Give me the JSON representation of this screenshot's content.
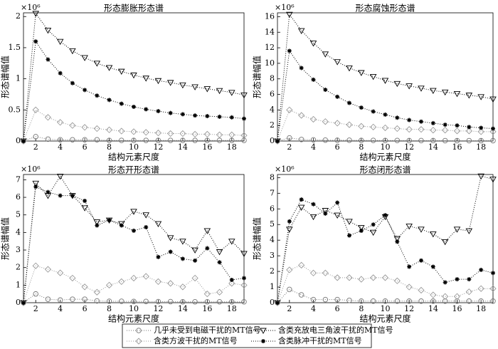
{
  "chart_data": [
    {
      "type": "line",
      "title": "形态膨胀形态谱",
      "x_label": "结构元素尺度",
      "y_label": "形态谱幅值",
      "y_multiplier": "×10⁶",
      "x": [
        1,
        2,
        3,
        4,
        5,
        6,
        7,
        8,
        9,
        10,
        11,
        12,
        13,
        14,
        15,
        16,
        17,
        18,
        19
      ],
      "xlim": [
        1,
        19
      ],
      "xticks": [
        2,
        4,
        6,
        8,
        10,
        12,
        14,
        16,
        18
      ],
      "ylim": [
        0,
        2.06
      ],
      "yticks": [
        0,
        0.5,
        1,
        1.5,
        2
      ],
      "series": [
        {
          "name": "几乎未受到电磁干扰的MT信号",
          "color": "#777777",
          "marker": "circle",
          "values": [
            0,
            0.07,
            0.03,
            0.02,
            0.02,
            0.02,
            0.02,
            0.01,
            0.01,
            0.01,
            0.01,
            0.01,
            0.01,
            0.01,
            0.01,
            0.01,
            0.01,
            0.01,
            0.01
          ]
        },
        {
          "name": "含类充放电三角波干扰的MT信号",
          "color": "#000000",
          "marker": "triangle",
          "values": [
            0,
            2.05,
            1.78,
            1.6,
            1.45,
            1.34,
            1.25,
            1.18,
            1.12,
            1.06,
            1.01,
            0.97,
            0.94,
            0.9,
            0.87,
            0.84,
            0.81,
            0.78,
            0.74
          ]
        },
        {
          "name": "含类方波干扰的MT信号",
          "color": "#999999",
          "marker": "diamond",
          "values": [
            0,
            0.5,
            0.38,
            0.3,
            0.25,
            0.22,
            0.2,
            0.18,
            0.16,
            0.15,
            0.14,
            0.13,
            0.12,
            0.12,
            0.11,
            0.11,
            0.1,
            0.1,
            0.09
          ]
        },
        {
          "name": "含类脉冲干扰的MT信号",
          "color": "#000000",
          "marker": "star",
          "values": [
            0,
            1.6,
            1.31,
            1.09,
            0.93,
            0.82,
            0.73,
            0.66,
            0.6,
            0.55,
            0.51,
            0.48,
            0.45,
            0.43,
            0.41,
            0.4,
            0.39,
            0.38,
            0.36
          ]
        }
      ]
    },
    {
      "type": "line",
      "title": "形态腐蚀形态谱",
      "x_label": "结构元素尺度",
      "y_label": "形态谱幅值",
      "y_multiplier": "×10⁶",
      "x": [
        1,
        2,
        3,
        4,
        5,
        6,
        7,
        8,
        9,
        10,
        11,
        12,
        13,
        14,
        15,
        16,
        17,
        18,
        19
      ],
      "xlim": [
        1,
        19
      ],
      "xticks": [
        2,
        4,
        6,
        8,
        10,
        12,
        14,
        16,
        18
      ],
      "ylim": [
        0,
        16.5
      ],
      "yticks": [
        0,
        2,
        4,
        6,
        8,
        10,
        12,
        14,
        16
      ],
      "series": [
        {
          "name": "几乎未受到电磁干扰的MT信号",
          "color": "#777777",
          "marker": "circle",
          "values": [
            0,
            0.4,
            0.2,
            0.15,
            0.12,
            0.1,
            0.1,
            0.08,
            0.08,
            0.07,
            0.07,
            0.06,
            0.06,
            0.06,
            0.05,
            0.05,
            0.05,
            0.05,
            0.05
          ]
        },
        {
          "name": "含类充放电三角波干扰的MT信号",
          "color": "#000000",
          "marker": "triangle",
          "values": [
            0,
            16.3,
            14.2,
            12.6,
            11.2,
            10.2,
            9.4,
            8.8,
            8.3,
            7.8,
            7.4,
            7.1,
            6.8,
            6.5,
            6.3,
            6.1,
            5.9,
            5.7,
            5.4
          ]
        },
        {
          "name": "含类方波干扰的MT信号",
          "color": "#999999",
          "marker": "diamond",
          "values": [
            0,
            4.0,
            3.3,
            2.8,
            2.5,
            2.3,
            2.1,
            1.9,
            1.8,
            1.7,
            1.6,
            1.5,
            1.5,
            1.4,
            1.4,
            1.3,
            1.3,
            1.2,
            1.2
          ]
        },
        {
          "name": "含类脉冲干扰的MT信号",
          "color": "#000000",
          "marker": "star",
          "values": [
            0,
            11.6,
            9.4,
            7.9,
            6.6,
            5.7,
            4.9,
            4.3,
            3.8,
            3.4,
            3.0,
            2.7,
            2.5,
            2.3,
            2.1,
            2.0,
            1.8,
            1.7,
            1.6
          ]
        }
      ]
    },
    {
      "type": "line",
      "title": "形态开形态谱",
      "x_label": "结构元素尺度",
      "y_label": "形态谱幅值",
      "y_multiplier": "×10⁶",
      "x": [
        1,
        2,
        3,
        4,
        5,
        6,
        7,
        8,
        9,
        10,
        11,
        12,
        13,
        14,
        15,
        16,
        17,
        18,
        19
      ],
      "xlim": [
        1,
        19
      ],
      "xticks": [
        2,
        4,
        6,
        8,
        10,
        12,
        14,
        16,
        18
      ],
      "ylim": [
        0,
        7.3
      ],
      "yticks": [
        0,
        1,
        2,
        3,
        4,
        5,
        6,
        7
      ],
      "series": [
        {
          "name": "几乎未受到电磁干扰的MT信号",
          "color": "#777777",
          "marker": "circle",
          "values": [
            0,
            0.5,
            0.2,
            0.15,
            0.2,
            0.2,
            0.1,
            0.08,
            0.08,
            0.07,
            0.07,
            0.06,
            0.06,
            0.05,
            0.05,
            0.05,
            0.05,
            0.05,
            0.05
          ]
        },
        {
          "name": "含类充放电三角波干扰的MT信号",
          "color": "#000000",
          "marker": "triangle",
          "values": [
            0,
            6.8,
            6.1,
            7.2,
            6.1,
            5.4,
            4.6,
            4.7,
            4.5,
            5.2,
            5.0,
            4.5,
            3.7,
            3.5,
            3.0,
            4.1,
            2.9,
            3.5,
            2.8
          ]
        },
        {
          "name": "含类方波干扰的MT信号",
          "color": "#999999",
          "marker": "diamond",
          "values": [
            0,
            2.1,
            1.9,
            1.7,
            1.4,
            0.9,
            0.6,
            1.0,
            1.2,
            1.4,
            1.5,
            1.2,
            1.1,
            0.9,
            1.4,
            0.5,
            0.6,
            1.1,
            1.0
          ]
        },
        {
          "name": "含类脉冲干扰的MT信号",
          "color": "#000000",
          "marker": "star",
          "values": [
            0,
            6.6,
            6.3,
            6.1,
            6.1,
            5.8,
            4.4,
            4.7,
            4.4,
            4.1,
            4.3,
            2.6,
            2.9,
            2.5,
            2.4,
            3.1,
            2.3,
            1.3,
            1.4
          ]
        }
      ]
    },
    {
      "type": "line",
      "title": "形态闭形态谱",
      "x_label": "结构元素尺度",
      "y_label": "形态谱幅值",
      "y_multiplier": "×10⁶",
      "x": [
        1,
        2,
        3,
        4,
        5,
        6,
        7,
        8,
        9,
        10,
        11,
        12,
        13,
        14,
        15,
        16,
        17,
        18,
        19
      ],
      "xlim": [
        1,
        19
      ],
      "xticks": [
        2,
        4,
        6,
        8,
        10,
        12,
        14,
        16,
        18
      ],
      "ylim": [
        0,
        8.2
      ],
      "yticks": [
        0,
        1,
        2,
        3,
        4,
        5,
        6,
        7,
        8
      ],
      "series": [
        {
          "name": "几乎未受到电磁干扰的MT信号",
          "color": "#777777",
          "marker": "circle",
          "values": [
            0,
            0.85,
            0.5,
            0.2,
            0.2,
            0.2,
            0.15,
            0.1,
            0.1,
            0.1,
            0.1,
            0.1,
            0.1,
            0.1,
            0.1,
            0.1,
            0.1,
            0.1,
            0.1
          ]
        },
        {
          "name": "含类充放电三角波干扰的MT信号",
          "color": "#000000",
          "marker": "triangle",
          "values": [
            0,
            4.7,
            6.1,
            5.5,
            5.9,
            5.6,
            5.2,
            4.8,
            4.5,
            5.5,
            4.1,
            4.9,
            4.7,
            4.4,
            3.9,
            4.7,
            4.6,
            8.1,
            7.9
          ]
        },
        {
          "name": "含类方波干扰的MT信号",
          "color": "#999999",
          "marker": "diamond",
          "values": [
            0,
            2.1,
            2.4,
            1.9,
            1.9,
            1.6,
            1.6,
            1.5,
            1.6,
            1.6,
            1.4,
            1.0,
            0.8,
            0.5,
            0.4,
            0.4,
            0.7,
            0.9,
            0.9
          ]
        },
        {
          "name": "含类脉冲干扰的MT信号",
          "color": "#000000",
          "marker": "star",
          "values": [
            0,
            5.2,
            6.6,
            6.3,
            5.7,
            6.4,
            4.3,
            4.6,
            5.0,
            5.6,
            3.9,
            2.3,
            2.7,
            2.3,
            1.3,
            1.5,
            1.5,
            2.1,
            1.9
          ]
        }
      ]
    }
  ]
}
